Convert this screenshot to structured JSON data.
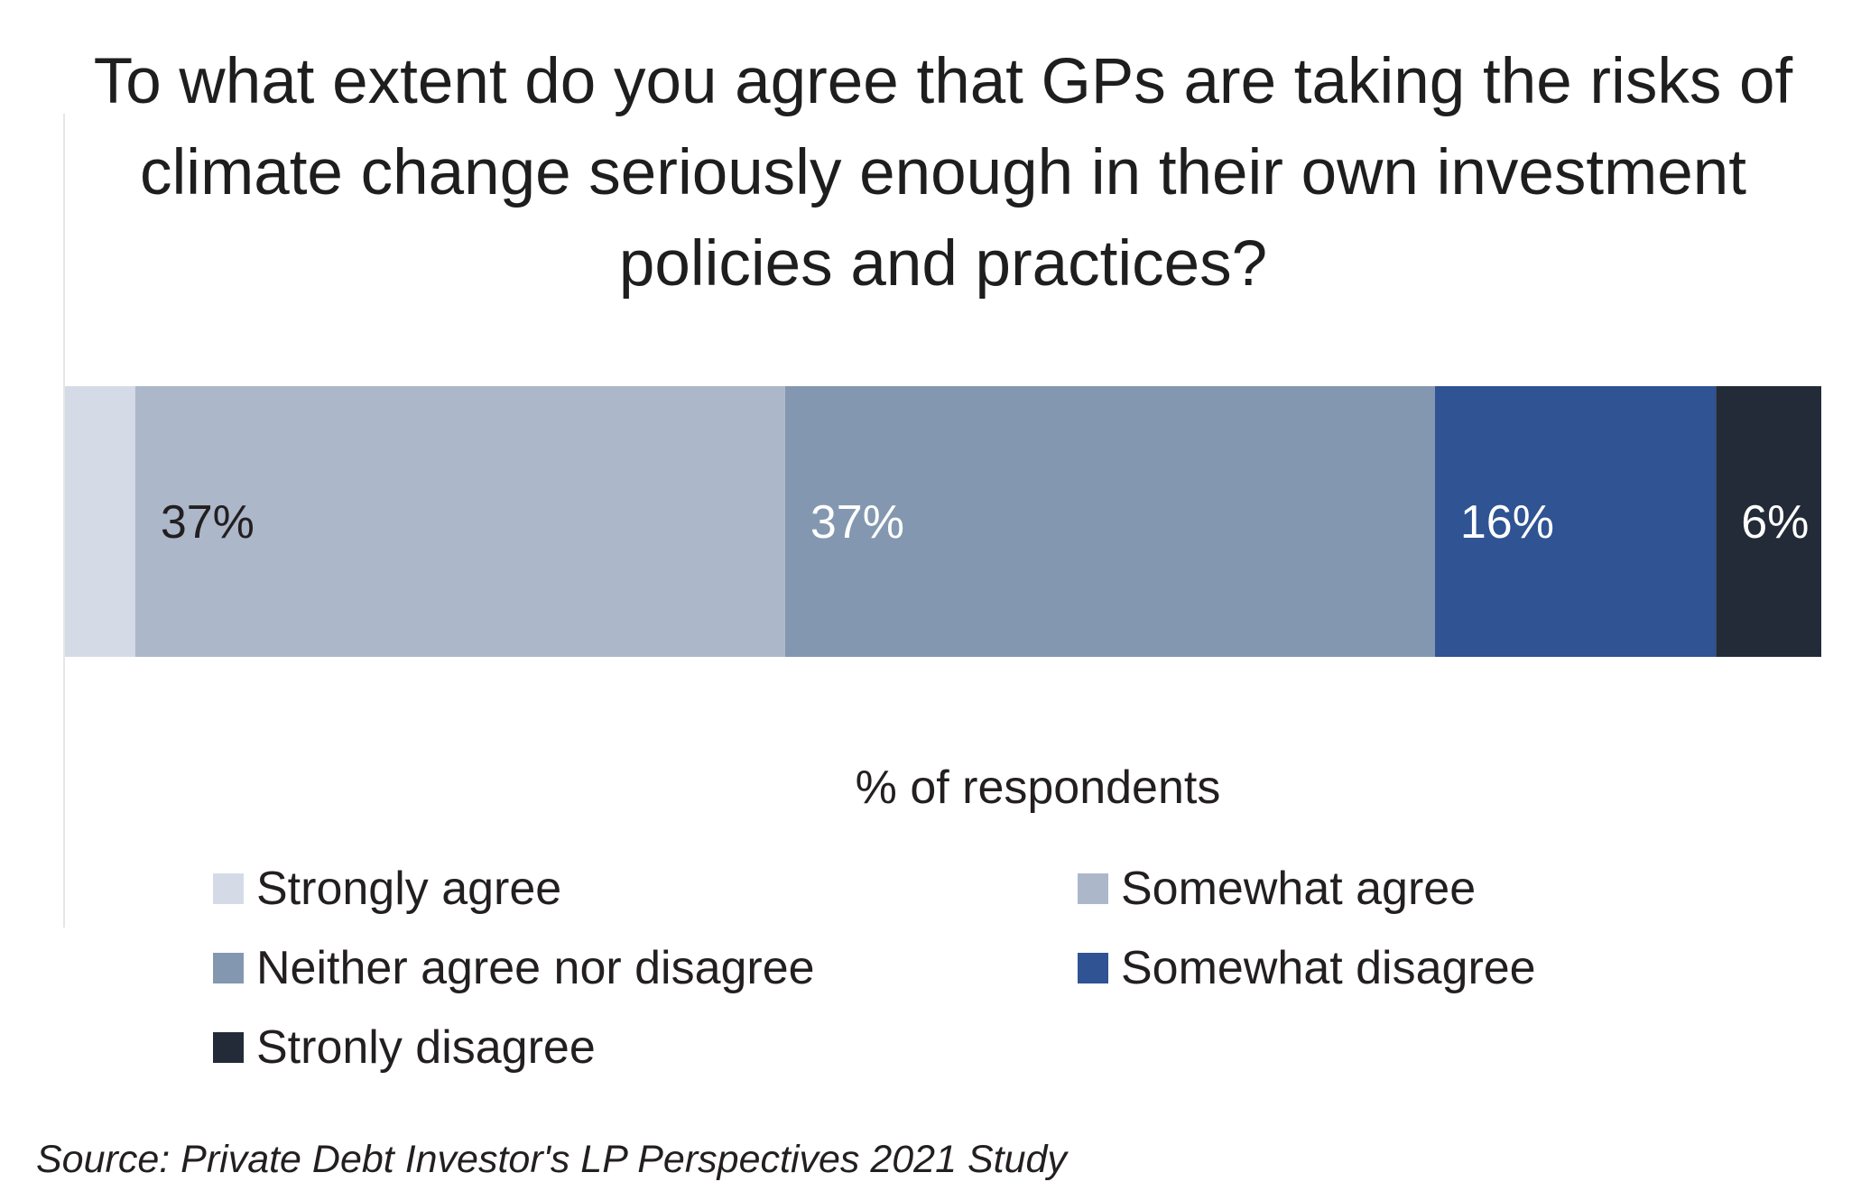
{
  "chart_data": {
    "type": "bar",
    "orientation": "horizontal-stacked-100",
    "title": "To what extent do you agree that GPs are taking the risks of climate change seriously enough in their own investment policies and practices?",
    "xlabel": "% of respondents",
    "ylabel": "",
    "xlim": [
      0,
      100
    ],
    "grid": false,
    "legend_position": "bottom",
    "categories": [
      ""
    ],
    "series": [
      {
        "name": "Strongly agree",
        "values": [
          4
        ],
        "color": "#d5dbe6",
        "label": "",
        "label_color": "#231f20"
      },
      {
        "name": "Somewhat agree",
        "values": [
          37
        ],
        "color": "#acb7ca",
        "label": "37%",
        "label_color": "#231f20"
      },
      {
        "name": "Neither agree nor disagree",
        "values": [
          37
        ],
        "color": "#8397b0",
        "label": "37%",
        "label_color": "#ffffff"
      },
      {
        "name": "Somewhat disagree",
        "values": [
          16
        ],
        "color": "#2f5393",
        "label": "16%",
        "label_color": "#ffffff"
      },
      {
        "name": "Stronly disagree",
        "values": [
          6
        ],
        "color": "#232b38",
        "label": "6%",
        "label_color": "#ffffff"
      }
    ]
  },
  "source": "Source: Private Debt Investor's LP Perspectives 2021 Study"
}
